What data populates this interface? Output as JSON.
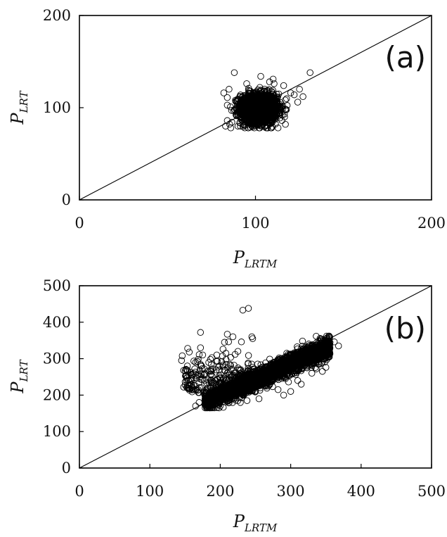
{
  "chart_data": [
    {
      "panel": "a",
      "type": "scatter",
      "panel_label": "(a)",
      "xlabel_main": "P",
      "xlabel_sub": "LRTM",
      "ylabel_main": "P",
      "ylabel_sub": "LRT",
      "xlim": [
        0,
        200
      ],
      "ylim": [
        0,
        200
      ],
      "xticks": [
        0,
        100,
        200
      ],
      "yticks": [
        0,
        100,
        200
      ],
      "reference_line": "y = x",
      "grid": false,
      "marker": "open-circle",
      "cloud": {
        "center": [
          102,
          99
        ],
        "x_range": [
          84,
          132
        ],
        "y_range": [
          78,
          138
        ],
        "approx_n": 2000
      },
      "points": [
        {
          "x": 88,
          "y": 138
        },
        {
          "x": 103,
          "y": 134
        },
        {
          "x": 110,
          "y": 131
        },
        {
          "x": 131,
          "y": 138
        },
        {
          "x": 125,
          "y": 120
        },
        {
          "x": 122,
          "y": 114
        },
        {
          "x": 127,
          "y": 112
        },
        {
          "x": 124,
          "y": 106
        },
        {
          "x": 120,
          "y": 116
        },
        {
          "x": 84,
          "y": 111
        },
        {
          "x": 82,
          "y": 116
        },
        {
          "x": 85,
          "y": 120
        },
        {
          "x": 84,
          "y": 86
        },
        {
          "x": 83,
          "y": 80
        },
        {
          "x": 86,
          "y": 78
        },
        {
          "x": 95,
          "y": 126
        },
        {
          "x": 108,
          "y": 128
        },
        {
          "x": 116,
          "y": 124
        },
        {
          "x": 115,
          "y": 86
        },
        {
          "x": 117,
          "y": 82
        },
        {
          "x": 90,
          "y": 80
        }
      ]
    },
    {
      "panel": "b",
      "type": "scatter",
      "panel_label": "(b)",
      "xlabel_main": "P",
      "xlabel_sub": "LRTM",
      "ylabel_main": "P",
      "ylabel_sub": "LRT",
      "xlim": [
        0,
        500
      ],
      "ylim": [
        0,
        500
      ],
      "xticks": [
        0,
        100,
        200,
        300,
        400,
        500
      ],
      "yticks": [
        0,
        100,
        200,
        300,
        400,
        500
      ],
      "reference_line": "y = x",
      "grid": false,
      "marker": "open-circle",
      "cloud": {
        "x_range": [
          145,
          368
        ],
        "y_range": [
          165,
          362
        ],
        "trend": "y ≈ 0.85x + 30",
        "approx_n": 3000
      },
      "points": [
        {
          "x": 232,
          "y": 433
        },
        {
          "x": 240,
          "y": 438
        },
        {
          "x": 172,
          "y": 372
        },
        {
          "x": 210,
          "y": 367
        },
        {
          "x": 218,
          "y": 360
        },
        {
          "x": 230,
          "y": 346
        },
        {
          "x": 246,
          "y": 355
        },
        {
          "x": 206,
          "y": 345
        },
        {
          "x": 225,
          "y": 320
        },
        {
          "x": 208,
          "y": 315
        },
        {
          "x": 146,
          "y": 308
        },
        {
          "x": 145,
          "y": 295
        },
        {
          "x": 148,
          "y": 268
        },
        {
          "x": 152,
          "y": 254
        },
        {
          "x": 155,
          "y": 240
        },
        {
          "x": 160,
          "y": 222
        },
        {
          "x": 148,
          "y": 222
        },
        {
          "x": 165,
          "y": 290
        },
        {
          "x": 172,
          "y": 330
        },
        {
          "x": 175,
          "y": 310
        },
        {
          "x": 186,
          "y": 298
        },
        {
          "x": 195,
          "y": 310
        },
        {
          "x": 368,
          "y": 335
        },
        {
          "x": 362,
          "y": 346
        },
        {
          "x": 355,
          "y": 357
        },
        {
          "x": 350,
          "y": 276
        },
        {
          "x": 345,
          "y": 265
        },
        {
          "x": 330,
          "y": 260
        },
        {
          "x": 315,
          "y": 230
        },
        {
          "x": 310,
          "y": 240
        },
        {
          "x": 300,
          "y": 210
        },
        {
          "x": 290,
          "y": 200
        },
        {
          "x": 282,
          "y": 215
        },
        {
          "x": 270,
          "y": 228
        },
        {
          "x": 255,
          "y": 190
        },
        {
          "x": 238,
          "y": 185
        },
        {
          "x": 220,
          "y": 190
        },
        {
          "x": 200,
          "y": 170
        },
        {
          "x": 180,
          "y": 168
        },
        {
          "x": 170,
          "y": 180
        },
        {
          "x": 165,
          "y": 170
        }
      ]
    }
  ]
}
